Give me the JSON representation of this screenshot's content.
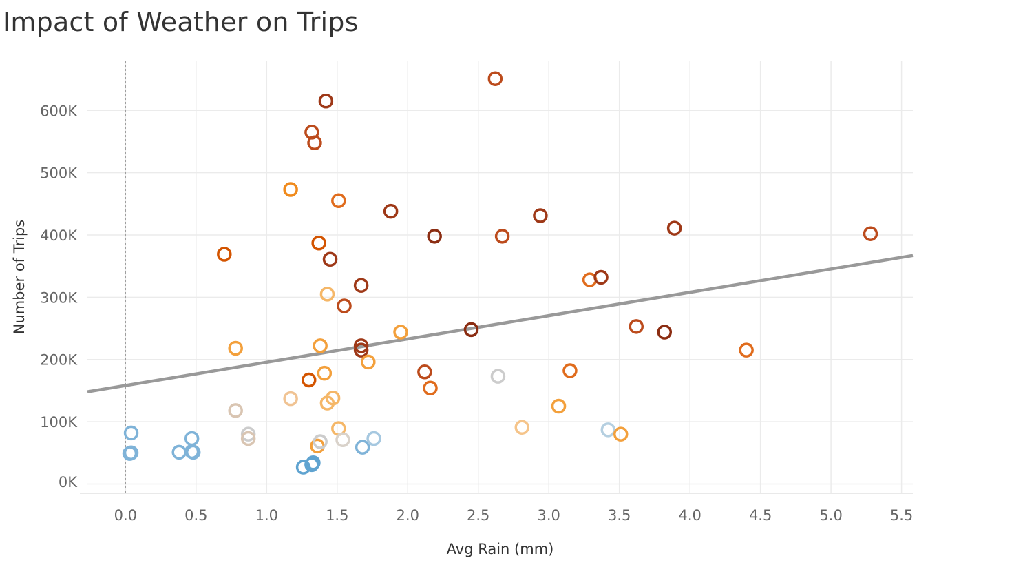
{
  "chart_data": {
    "type": "scatter",
    "title": "Impact of Weather on Trips",
    "xlabel": "Avg Rain (mm)",
    "ylabel": "Number of Trips",
    "xlim": [
      -0.27,
      5.58
    ],
    "ylim": [
      -15000,
      680000
    ],
    "x_ticks": [
      0.0,
      0.5,
      1.0,
      1.5,
      2.0,
      2.5,
      3.0,
      3.5,
      4.0,
      4.5,
      5.0,
      5.5
    ],
    "x_tick_labels": [
      "0.0",
      "0.5",
      "1.0",
      "1.5",
      "2.0",
      "2.5",
      "3.0",
      "3.5",
      "4.0",
      "4.5",
      "5.0",
      "5.5"
    ],
    "y_ticks": [
      0,
      100000,
      200000,
      300000,
      400000,
      500000,
      600000
    ],
    "y_tick_labels": [
      "0K",
      "100K",
      "200K",
      "300K",
      "400K",
      "500K",
      "600K"
    ],
    "grid": true,
    "zero_line": "dotted vertical at x = 0",
    "trend_line": {
      "x": [
        -0.27,
        5.58
      ],
      "y": [
        148000,
        367000
      ],
      "color": "#999999"
    },
    "points": [
      {
        "x": 0.04,
        "y": 82000,
        "color": "#7fb3d8"
      },
      {
        "x": 0.04,
        "y": 50000,
        "color": "#7fb3d8"
      },
      {
        "x": 0.03,
        "y": 49000,
        "color": "#7fb3d8"
      },
      {
        "x": 0.38,
        "y": 51000,
        "color": "#7fb3d8"
      },
      {
        "x": 0.47,
        "y": 73000,
        "color": "#7fb3d8"
      },
      {
        "x": 0.48,
        "y": 51000,
        "color": "#7fb3d8"
      },
      {
        "x": 0.47,
        "y": 52000,
        "color": "#7fb3d8"
      },
      {
        "x": 0.7,
        "y": 369000,
        "color": "#d35400"
      },
      {
        "x": 0.78,
        "y": 118000,
        "color": "#d9c5b2"
      },
      {
        "x": 0.78,
        "y": 218000,
        "color": "#f3a03c"
      },
      {
        "x": 0.87,
        "y": 80000,
        "color": "#cccccc"
      },
      {
        "x": 0.87,
        "y": 73000,
        "color": "#d9c5b2"
      },
      {
        "x": 1.17,
        "y": 473000,
        "color": "#f08a1c"
      },
      {
        "x": 1.17,
        "y": 137000,
        "color": "#f0c393"
      },
      {
        "x": 1.26,
        "y": 27000,
        "color": "#5fa3d0"
      },
      {
        "x": 1.3,
        "y": 167000,
        "color": "#d35400"
      },
      {
        "x": 1.32,
        "y": 565000,
        "color": "#bc4b1c"
      },
      {
        "x": 1.33,
        "y": 34000,
        "color": "#5fa3d0"
      },
      {
        "x": 1.32,
        "y": 31000,
        "color": "#5fa3d0"
      },
      {
        "x": 1.34,
        "y": 548000,
        "color": "#bc4b1c"
      },
      {
        "x": 1.36,
        "y": 61000,
        "color": "#f3a03c"
      },
      {
        "x": 1.37,
        "y": 387000,
        "color": "#d35400"
      },
      {
        "x": 1.38,
        "y": 68000,
        "color": "#cccccc"
      },
      {
        "x": 1.38,
        "y": 222000,
        "color": "#f3a03c"
      },
      {
        "x": 1.41,
        "y": 178000,
        "color": "#f3a03c"
      },
      {
        "x": 1.42,
        "y": 615000,
        "color": "#9e3817"
      },
      {
        "x": 1.43,
        "y": 305000,
        "color": "#f5b768"
      },
      {
        "x": 1.43,
        "y": 130000,
        "color": "#f5b768"
      },
      {
        "x": 1.45,
        "y": 361000,
        "color": "#9e3817"
      },
      {
        "x": 1.47,
        "y": 138000,
        "color": "#f5b768"
      },
      {
        "x": 1.51,
        "y": 89000,
        "color": "#f5b768"
      },
      {
        "x": 1.51,
        "y": 455000,
        "color": "#e06c1d"
      },
      {
        "x": 1.54,
        "y": 71000,
        "color": "#d9d2ca"
      },
      {
        "x": 1.55,
        "y": 286000,
        "color": "#bc4b1c"
      },
      {
        "x": 1.67,
        "y": 319000,
        "color": "#9e3817"
      },
      {
        "x": 1.67,
        "y": 222000,
        "color": "#9e3817"
      },
      {
        "x": 1.67,
        "y": 215000,
        "color": "#9e3817"
      },
      {
        "x": 1.68,
        "y": 59000,
        "color": "#7fb3d8"
      },
      {
        "x": 1.72,
        "y": 196000,
        "color": "#f3a03c"
      },
      {
        "x": 1.76,
        "y": 73000,
        "color": "#a6c8e0"
      },
      {
        "x": 1.88,
        "y": 438000,
        "color": "#9e3817"
      },
      {
        "x": 1.95,
        "y": 244000,
        "color": "#f3a03c"
      },
      {
        "x": 2.12,
        "y": 180000,
        "color": "#bc4b1c"
      },
      {
        "x": 2.16,
        "y": 154000,
        "color": "#e06c1d"
      },
      {
        "x": 2.19,
        "y": 398000,
        "color": "#8b2d12"
      },
      {
        "x": 2.45,
        "y": 248000,
        "color": "#8b2d12"
      },
      {
        "x": 2.62,
        "y": 651000,
        "color": "#bc4b1c"
      },
      {
        "x": 2.64,
        "y": 173000,
        "color": "#cccccc"
      },
      {
        "x": 2.67,
        "y": 398000,
        "color": "#bc4b1c"
      },
      {
        "x": 2.81,
        "y": 91000,
        "color": "#f5c48a"
      },
      {
        "x": 2.94,
        "y": 431000,
        "color": "#9e3817"
      },
      {
        "x": 3.07,
        "y": 125000,
        "color": "#f3a03c"
      },
      {
        "x": 3.15,
        "y": 182000,
        "color": "#e06c1d"
      },
      {
        "x": 3.29,
        "y": 328000,
        "color": "#e06c1d"
      },
      {
        "x": 3.37,
        "y": 332000,
        "color": "#9e3817"
      },
      {
        "x": 3.42,
        "y": 87000,
        "color": "#b5cfe0"
      },
      {
        "x": 3.51,
        "y": 80000,
        "color": "#f3a03c"
      },
      {
        "x": 3.62,
        "y": 253000,
        "color": "#bc4b1c"
      },
      {
        "x": 3.82,
        "y": 244000,
        "color": "#8b2d12"
      },
      {
        "x": 3.89,
        "y": 411000,
        "color": "#9e3817"
      },
      {
        "x": 4.4,
        "y": 215000,
        "color": "#e06c1d"
      },
      {
        "x": 5.28,
        "y": 402000,
        "color": "#bc4b1c"
      }
    ]
  }
}
